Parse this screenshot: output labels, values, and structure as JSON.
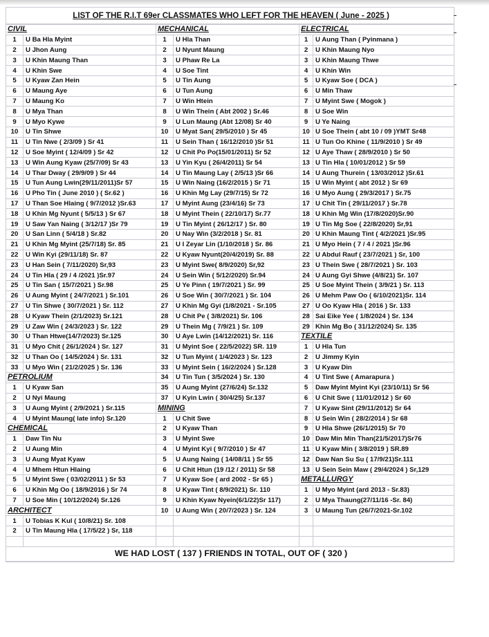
{
  "title": "LIST OF  THE  R.I.T 69er CLASSMATES  WHO  LEFT  FOR THE HEAVEN  ( June - 2025 )",
  "footer": "WE HAD LOST ( 137 ) FRIENDS IN TOTAL, OUT OF ( 320 )",
  "columns": [
    [
      {
        "section": "CIVIL",
        "plain_header": true,
        "items": [
          [
            "1",
            "U Ba Hla Myint"
          ],
          [
            "2",
            "U Jhon Aung"
          ],
          [
            "3",
            "U Khin Maung Than"
          ],
          [
            "4",
            "U Khin Swe"
          ],
          [
            "5",
            "U Kyaw Zan Hein"
          ],
          [
            "6",
            "U Maung Aye"
          ],
          [
            "7",
            "U Maung Ko"
          ],
          [
            "8",
            "U Mya Than"
          ],
          [
            "9",
            "U Myo Kywe"
          ],
          [
            "10",
            "U Tin Shwe"
          ],
          [
            "11",
            "U Tin Nwe ( 2/3/09 ) Sr 41"
          ],
          [
            "12",
            "U Soe Myint ( 12/4/09 ) Sr 42"
          ],
          [
            "13",
            "U Win Aung Kyaw (25/7/09) Sr 43"
          ],
          [
            "14",
            "U Thar Dway ( 29/9/09 ) Sr 44"
          ],
          [
            "15",
            "U Tun Aung Lwin(29/11/2011)Sr 57"
          ],
          [
            "16",
            "U Pho Tin ( June 2010 ) ( Sr.62 )"
          ],
          [
            "17",
            "U Than Soe Hlaing ( 9/7/2012 )Sr.63"
          ],
          [
            "18",
            "U Khin Mg Nyunt ( 5/5/13 ) Sr 67"
          ],
          [
            "19",
            "U Saw Yan Naing ( 3/12/17 )Sr 79"
          ],
          [
            "20",
            "U San Linn ( 5/4/18 ) Sr.82"
          ],
          [
            "21",
            "U Khin Mg Myint (25/7/18) Sr. 85"
          ],
          [
            "22",
            "U Win Kyi (29/11/18) Sr. 87"
          ],
          [
            "23",
            "U Han Sein ( 7/11/2020) Sr,93"
          ],
          [
            "24",
            "U Tin Hla ( 29 / 4 /2021 )Sr.97"
          ],
          [
            "25",
            "U Tin San ( 15/7/2021 ) Sr.98"
          ],
          [
            "26",
            "U Aung Myint ( 24/7/2021 ) Sr.101"
          ],
          [
            "27",
            "U Tin Shwe ( 30/7/2021 ) Sr. 112"
          ],
          [
            "28",
            "U Kyaw Thein (2/1/2023) Sr.121"
          ],
          [
            "29",
            "U Zaw Win ( 24/3/2023 ) Sr. 122"
          ],
          [
            "30",
            "U Than Htwe(14/7/2023) Sr.125"
          ],
          [
            "31",
            "U Myo Chit ( 26/1/2024 ) Sr. 127"
          ],
          [
            "32",
            "U Than Oo ( 14/5/2024 ) Sr. 131"
          ],
          [
            "33",
            "U Myo Win ( 21/2/2025 ) Sr. 136"
          ]
        ]
      },
      {
        "section": "PETROLIUM",
        "items": [
          [
            "1",
            "U Kyaw San"
          ],
          [
            "2",
            "U Nyi Maung"
          ],
          [
            "3",
            "U Aung Myint  ( 2/9/2021 )   Sr.115"
          ],
          [
            "4",
            "U Myint Maung( late info) Sr.120"
          ]
        ]
      },
      {
        "section": "CHEMICAL",
        "items": [
          [
            "1",
            "Daw Tin Nu"
          ],
          [
            "2",
            "U Aung Min"
          ],
          [
            "3",
            "U Aung Myat Kyaw"
          ],
          [
            "4",
            "U Mhem Htun Hlaing"
          ],
          [
            "5",
            "U Myint Swe ( 03/02/2011 ) Sr 53"
          ],
          [
            "6",
            "U Khin Mg Oo ( 18/9/2016 ) Sr 74"
          ],
          [
            "7",
            "U Soe Min ( 10/12/2024) Sr.126"
          ]
        ]
      },
      {
        "section": "ARCHITECT",
        "items": [
          [
            "1",
            "U Tobias K Kul ( 10/8/21) Sr. 108"
          ],
          [
            "2",
            "U Tin Maung Hla ( 17/5/22 ) Sr, 118"
          ]
        ]
      }
    ],
    [
      {
        "section": "MECHANICAL",
        "plain_header": true,
        "items": [
          [
            "1",
            "U Hla Than"
          ],
          [
            "2",
            "U Nyunt Maung"
          ],
          [
            "3",
            "U Phaw Re La"
          ],
          [
            "4",
            "U Soe Tint"
          ],
          [
            "5",
            "U Tin Aung"
          ],
          [
            "6",
            "U Tun Aung"
          ],
          [
            "7",
            "U Win Htein"
          ],
          [
            "8",
            "U Win Thein ( Abt 2002 ) Sr.46"
          ],
          [
            "9",
            "U  Lun Maung (Abt 12/08) Sr 40"
          ],
          [
            "10",
            "U Myat San( 29/5/2010 ) Sr 45"
          ],
          [
            "11",
            "U Sein Than ( 16/12/2010 )Sr 51"
          ],
          [
            "12",
            "U Chit Po Po(15/01/2011) Sr 52"
          ],
          [
            "13",
            "U Yin Kyu ( 26/4/2011) Sr 54"
          ],
          [
            "14",
            "U Tin Maung Lay ( 2/5/13 )Sr 66"
          ],
          [
            "15",
            "U Win Naing (16/2/2015 ) Sr 71"
          ],
          [
            "16",
            "U Khin Mg Lay (29/7/15) Sr 72"
          ],
          [
            "17",
            "U Myint Aung (23/4/16) Sr 73"
          ],
          [
            "18",
            "U Myint Thein ( 22/10/17) Sr.77"
          ],
          [
            "19",
            "U Tin Myint ( 26/12/17 ) Sr. 80"
          ],
          [
            "20",
            "U Nay Win (3/2/2018 ) Sr. 81"
          ],
          [
            "21",
            "U I Zeyar Lin (1/10/2018 ) Sr. 86"
          ],
          [
            "22",
            "U Kyaw Nyunt(20/4/2019) Sr. 88"
          ],
          [
            "23",
            "U Myint Swe( 8/9/2020) Sr,92"
          ],
          [
            "24",
            "U Sein Win ( 5/12/2020) Sr.94"
          ],
          [
            "25",
            "U Ye Pinn ( 19/7/2021 ) Sr. 99"
          ],
          [
            "26",
            "U Soe Win ( 30/7/2021 ) Sr. 104"
          ],
          [
            "27",
            "U Khin Mg Gyi (1/8/2021 - Sr.105"
          ],
          [
            "28",
            "U Chit Pe ( 3/8/2021) Sr. 106"
          ],
          [
            "29",
            "U Thein Mg ( 7/9/21 ) Sr. 109"
          ],
          [
            "30",
            "U Aye Lwin  (14/12/2021)  Sr. 116"
          ],
          [
            "31",
            "U Myint Soe ( 22/5/2022)  SR. 119"
          ],
          [
            "32",
            "U Tun Myint ( 1/4/2023  ) Sr. 123"
          ],
          [
            "33",
            "U Myint Sein ( 16/2/2024 ) Sr.128"
          ],
          [
            "34",
            "U Tin Tun ( 3/5/2024 ) Sr. 130"
          ],
          [
            "35",
            "U Aung Myint (27/6/24) Sr.132"
          ],
          [
            "37",
            "U Kyin Lwin ( 30/4/25) Sr.137"
          ]
        ]
      },
      {
        "section": "MINING",
        "items": [
          [
            "1",
            "U Chit Swe"
          ],
          [
            "2",
            "U Kyaw Than"
          ],
          [
            "3",
            "U Myint Swe"
          ],
          [
            "4",
            "U Myint Kyi ( 9/7/2010 ) Sr 47"
          ],
          [
            "5",
            "U Aung Naing ( 14/08/11 ) Sr 55"
          ],
          [
            "6",
            "U Chit Htun (19 /12 / 2011) Sr 58"
          ],
          [
            "7",
            "U Kyaw Soe ( ard 2002 - Sr 65 )"
          ],
          [
            "8",
            "U Kyaw Tint ( 8/9/2021) Sr. 110"
          ],
          [
            "9",
            "U Khin Kyaw Nyein(6/1/22)Sr 117)"
          ],
          [
            "10",
            "U Aung Win ( 20/7/2023 ) Sr. 124"
          ]
        ]
      }
    ],
    [
      {
        "section": "ELECTRICAL",
        "plain_header": true,
        "items": [
          [
            "1",
            "U Aung Than ( Pyinmana )"
          ],
          [
            "2",
            "U Khin Maung Nyo"
          ],
          [
            "3",
            "U Khin Maung Thwe"
          ],
          [
            "4",
            "U Khin Win"
          ],
          [
            "5",
            "U Kyaw Soe ( DCA )"
          ],
          [
            "6",
            "U Min Thaw"
          ],
          [
            "7",
            "U Myint Swe ( Mogok )"
          ],
          [
            "8",
            "U Soe Win"
          ],
          [
            "9",
            "U Ye Naing"
          ],
          [
            "10",
            "U Soe Thein ( abt 10 / 09 )YMT Sr48"
          ],
          [
            "11",
            "U Tun Oo Khine ( 11/9/2010 ) Sr 49"
          ],
          [
            "12",
            "U Aye Thaw ( 28/9/2010 ) Sr 50"
          ],
          [
            "13",
            "U Tin Hla ( 10/01/2012 ) Sr 59"
          ],
          [
            "14",
            "U Aung Thurein ( 13/03/2012 )Sr.61"
          ],
          [
            "15",
            "U Win Myint ( abt  2012 ) Sr 69"
          ],
          [
            "16",
            "U Myo Aung ( 29/3/2017 ) Sr.75"
          ],
          [
            "17",
            "U Chit Tin ( 29/11/2017 ) Sr.78"
          ],
          [
            "18",
            "U Khin Mg Win (17/8/2020)Sr.90"
          ],
          [
            "19",
            "U Tin Mg Soe ( 22/8/2020) Sr,91"
          ],
          [
            "20",
            "U Khin Maung Tint ( 4/2/2021 )Sr.95"
          ],
          [
            "21",
            "U Myo Hein ( 7 / 4 / 2021 )Sr.96"
          ],
          [
            "22",
            "U Abdul Rauf ( 23/7/2021 ) Sr, 100"
          ],
          [
            "23",
            "U Thein Swe ( 28/7/2021 ) Sr. 103"
          ],
          [
            "24",
            "U Aung Gyi Shwe (4/8/21) Sr. 107"
          ],
          [
            "25",
            "U Soe Myint Thein ( 3/9/21 ) Sr. 113"
          ],
          [
            "26",
            "U Mehm Paw Oo ( 6/10/2021)Sr. 114"
          ],
          [
            "27",
            "U Oo Kyaw Hla ( 2016 ) Sr. 133"
          ],
          [
            "28",
            "Sai Eike Yee ( 1/8/2024 ) Sr. 134"
          ],
          [
            "29",
            "Khin Mg Bo ( 31/12/2024) Sr. 135"
          ]
        ]
      },
      {
        "section": "TEXTILE",
        "items": [
          [
            "1",
            "U Hla Tun"
          ],
          [
            "2",
            "U Jimmy Kyin"
          ],
          [
            "3",
            "U Kyaw Din"
          ],
          [
            "4",
            "U Tint Swe ( Amarapura )"
          ],
          [
            "5",
            "Daw Myint Myint Kyi (23/10/11) Sr 56"
          ],
          [
            "6",
            "U Chit Swe ( 11/01/2012 ) Sr 60"
          ],
          [
            "7",
            "U Kyaw Sint (29/11/2012) Sr 64"
          ],
          [
            "8",
            "U Sein Win ( 28/2/2014 ) Sr 68"
          ],
          [
            "9",
            "U Hla Shwe (26/1/2015) Sr 70"
          ],
          [
            "10",
            "Daw Min Min Than(21/5/2017)Sr76"
          ],
          [
            "11",
            "U Kyaw Min ( 3/8/2019 ) SR.89"
          ],
          [
            "12",
            "Daw Nan Su Su ( 17/9/21)Sr.111"
          ],
          [
            "13",
            "U Sein Sein Maw ( 29/4/2024 ) Sr,129"
          ]
        ]
      },
      {
        "section": "METALLURGY",
        "items": [
          [
            "1",
            "U Myo Myint (ard 2013 - Sr.83)"
          ],
          [
            "2",
            "U Mya Thaung(27/11/16 -Sr. 84)"
          ],
          [
            "3",
            "U Maung Tun (26/7/2021-Sr.102"
          ]
        ]
      }
    ]
  ]
}
